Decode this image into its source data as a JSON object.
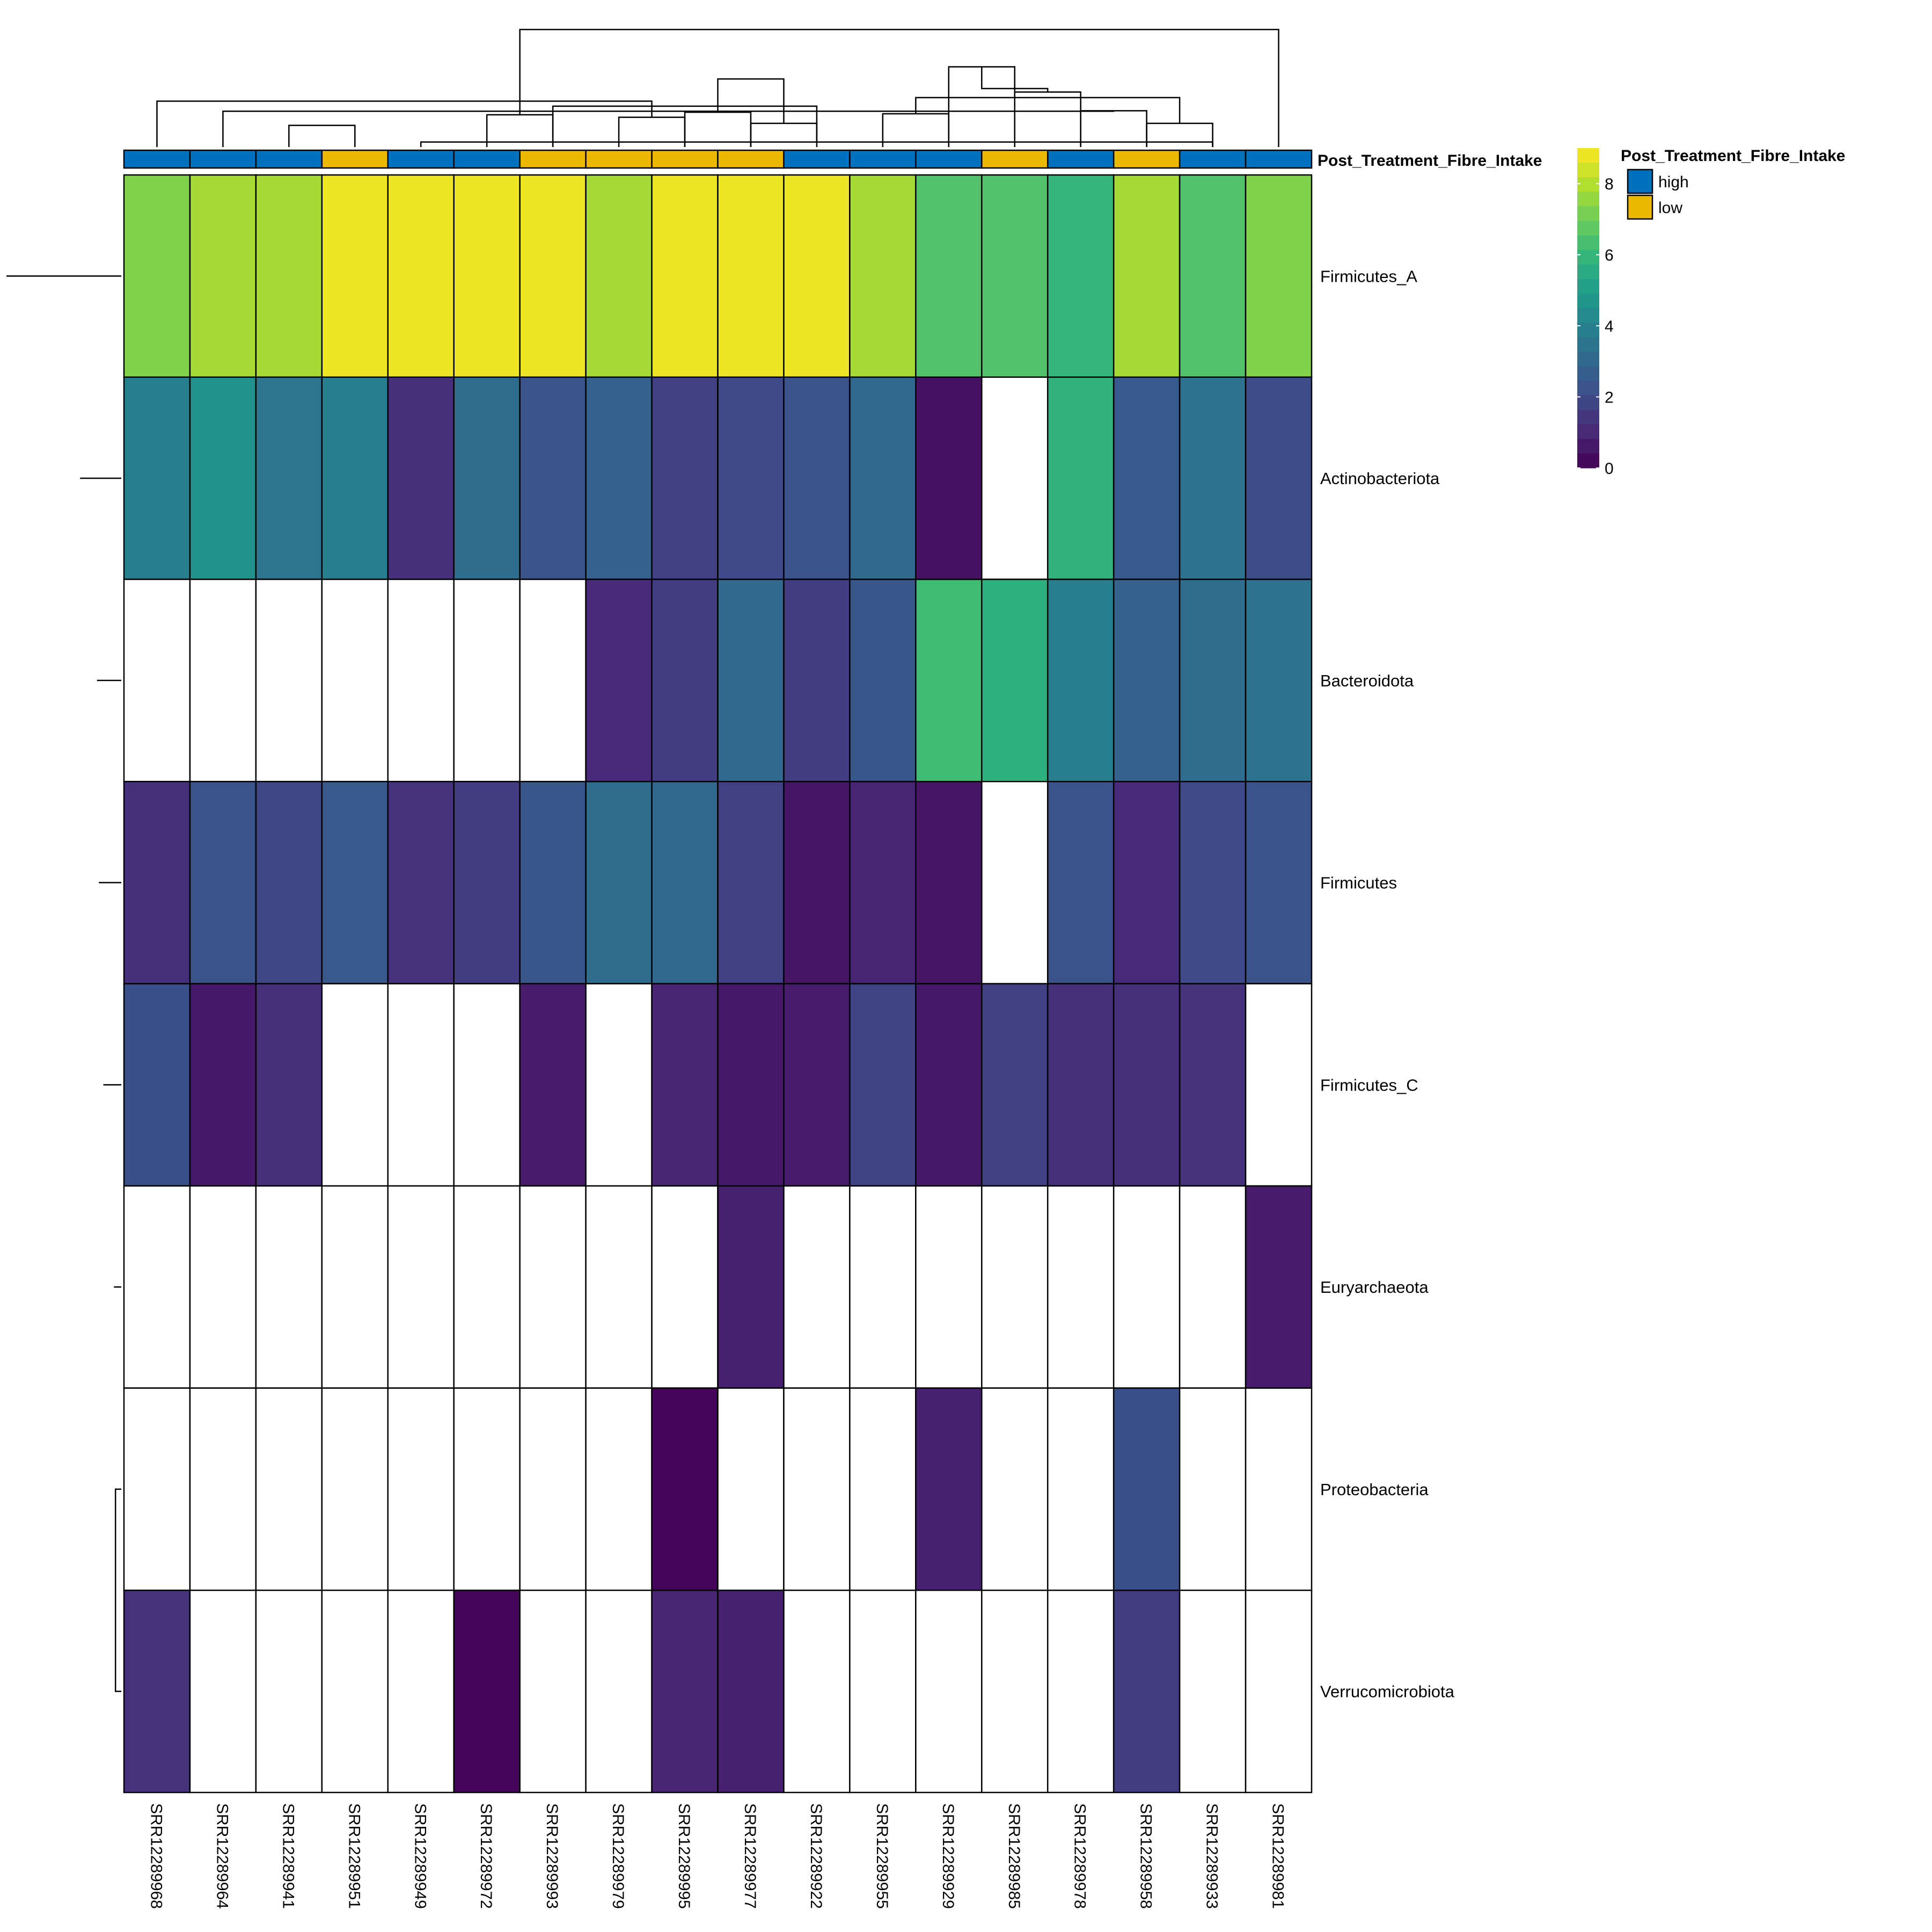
{
  "chart_data": {
    "type": "heatmap",
    "annotation_title": "Post_Treatment_Fibre_Intake",
    "legend_title": "Post_Treatment_Fibre_Intake",
    "legend_entries": [
      {
        "label": "high",
        "color": "#0072BD"
      },
      {
        "label": "low",
        "color": "#EDB800"
      }
    ],
    "colorbar": {
      "min": 0,
      "max": 9,
      "ticks": [
        0,
        2,
        4,
        6,
        8
      ]
    },
    "samples": [
      "SRR12289968",
      "SRR12289964",
      "SRR12289941",
      "SRR12289951",
      "SRR12289949",
      "SRR12289972",
      "SRR12289993",
      "SRR12289979",
      "SRR12289995",
      "SRR12289977",
      "SRR12289922",
      "SRR12289955",
      "SRR12289929",
      "SRR12289985",
      "SRR12289978",
      "SRR12289958",
      "SRR12289933",
      "SRR12289981"
    ],
    "groups": [
      "high",
      "high",
      "high",
      "low",
      "high",
      "high",
      "low",
      "low",
      "low",
      "low",
      "high",
      "high",
      "high",
      "low",
      "high",
      "low",
      "high",
      "high"
    ],
    "rows": [
      "Firmicutes_A",
      "Actinobacteriota",
      "Bacteroidota",
      "Firmicutes",
      "Firmicutes_C",
      "Euryarchaeota",
      "Proteobacteria",
      "Verrucomicrobiota"
    ],
    "values": [
      [
        7.3,
        7.8,
        7.8,
        8.8,
        8.8,
        8.8,
        8.8,
        7.8,
        8.8,
        8.8,
        8.8,
        7.8,
        6.5,
        6.5,
        5.9,
        7.8,
        6.5,
        7.3
      ],
      [
        3.9,
        4.6,
        3.5,
        3.9,
        1.2,
        3.2,
        2.3,
        2.8,
        1.7,
        2.0,
        2.3,
        3.0,
        0.4,
        null,
        5.8,
        2.5,
        3.4,
        2.1
      ],
      [
        null,
        null,
        null,
        null,
        null,
        null,
        null,
        1.1,
        1.6,
        3.0,
        1.6,
        2.4,
        6.2,
        5.7,
        3.9,
        2.8,
        3.2,
        3.4
      ],
      [
        1.2,
        2.3,
        1.9,
        2.5,
        1.3,
        1.6,
        2.4,
        3.2,
        3.0,
        1.7,
        0.5,
        0.9,
        0.5,
        null,
        2.3,
        1.1,
        2.0,
        2.3
      ],
      [
        2.2,
        0.6,
        1.2,
        null,
        null,
        null,
        0.7,
        null,
        0.9,
        0.6,
        0.7,
        1.8,
        0.6,
        1.7,
        1.2,
        1.2,
        1.3,
        null
      ],
      [
        null,
        null,
        null,
        null,
        null,
        null,
        null,
        null,
        null,
        0.8,
        null,
        null,
        null,
        null,
        null,
        null,
        null,
        0.7
      ],
      [
        null,
        null,
        null,
        null,
        null,
        null,
        null,
        null,
        0.1,
        null,
        null,
        null,
        0.8,
        null,
        null,
        2.2,
        null,
        null
      ],
      [
        1.3,
        null,
        null,
        null,
        null,
        0.1,
        null,
        null,
        0.9,
        0.8,
        null,
        null,
        null,
        null,
        null,
        1.6,
        null,
        null
      ]
    ],
    "col_dendrogram": [
      [
        5,
        17,
        1.0
      ],
      [
        12,
        13,
        6.6
      ],
      [
        16,
        17,
        4.7
      ],
      [
        15,
        16,
        7.2
      ],
      [
        14,
        15,
        10.9
      ],
      [
        13,
        14,
        15.9
      ],
      [
        8,
        9,
        5.9
      ],
      [
        10,
        11,
        4.7
      ],
      [
        9,
        10,
        6.9
      ],
      [
        6,
        7,
        6.4
      ],
      [
        7,
        19,
        8.1
      ],
      [
        20,
        21,
        9.8
      ],
      [
        3,
        4,
        4.3
      ],
      [
        2,
        22,
        7.1
      ],
      [
        23,
        24,
        11.6
      ],
      [
        1,
        25,
        9.1
      ],
      [
        26,
        27,
        13.5
      ],
      [
        18,
        28,
        23.3
      ]
    ],
    "row_dendrogram": [
      [
        7,
        8,
        2.2
      ],
      [
        6,
        29,
        2.8
      ],
      [
        5,
        30,
        6.8
      ],
      [
        4,
        31,
        8.5
      ],
      [
        3,
        32,
        9.2
      ],
      [
        2,
        33,
        15.6
      ],
      [
        1,
        34,
        43.5
      ]
    ]
  }
}
